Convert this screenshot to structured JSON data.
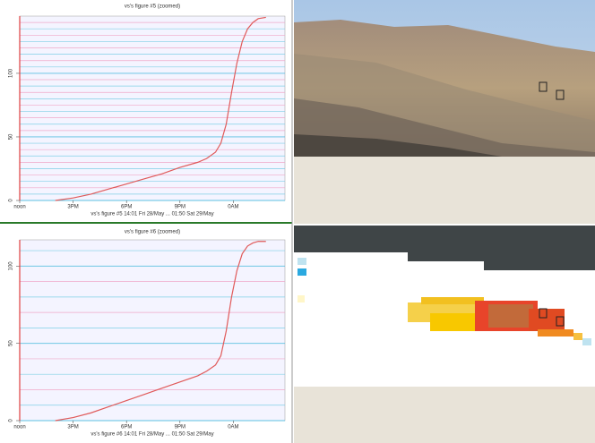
{
  "chart_data": [
    {
      "type": "line",
      "title": "vs's figure #5 (zoomed)",
      "x_label": "vs's figure #5 14:01 Fri 28/May ... 01:50 Sat 29/May",
      "x": [
        14,
        15,
        16,
        17,
        18,
        19,
        20,
        21,
        22,
        22.5,
        23,
        23.3,
        23.6,
        23.9,
        24.2,
        24.5,
        24.8,
        25.1,
        25.4,
        25.83
      ],
      "values": [
        0,
        2,
        5,
        9,
        13,
        17,
        21,
        26,
        30,
        33,
        38,
        45,
        60,
        85,
        108,
        125,
        135,
        140,
        143,
        144
      ],
      "color": "#e05a5a",
      "xlim": [
        12,
        26.9
      ],
      "ylim": [
        0,
        145
      ],
      "xticks": [
        {
          "value": 12,
          "label": "noon"
        },
        {
          "value": 15,
          "label": "3PM"
        },
        {
          "value": 18,
          "label": "6PM"
        },
        {
          "value": 21,
          "label": "9PM"
        },
        {
          "value": 24,
          "label": "0AM"
        }
      ],
      "yticks": [
        0,
        50,
        100
      ],
      "yminorticks": [
        5,
        10,
        15,
        20,
        25,
        30,
        35,
        40,
        45,
        55,
        60,
        65,
        70,
        75,
        80,
        85,
        90,
        95,
        105,
        110,
        115,
        120,
        125,
        130,
        135,
        140
      ],
      "grid": true
    },
    {
      "type": "line",
      "title": "vs's figure #6 (zoomed)",
      "x_label": "vs's figure #6 14:01 Fri 28/May ... 01:50 Sat 29/May",
      "x": [
        14,
        15,
        16,
        17,
        18,
        19,
        20,
        21,
        22,
        22.5,
        23,
        23.3,
        23.6,
        23.9,
        24.2,
        24.5,
        24.8,
        25.1,
        25.4,
        25.83
      ],
      "values": [
        0,
        2,
        5,
        9,
        13,
        17,
        21,
        25,
        29,
        32,
        36,
        42,
        58,
        80,
        97,
        108,
        113,
        115,
        116,
        116
      ],
      "color": "#e05a5a",
      "xlim": [
        12,
        26.9
      ],
      "ylim": [
        0,
        117
      ],
      "xticks": [
        {
          "value": 12,
          "label": "noon"
        },
        {
          "value": 15,
          "label": "3PM"
        },
        {
          "value": 18,
          "label": "6PM"
        },
        {
          "value": 21,
          "label": "9PM"
        },
        {
          "value": 24,
          "label": "0AM"
        }
      ],
      "yticks": [
        0,
        50,
        100
      ],
      "yminorticks": [
        10,
        20,
        30,
        40,
        60,
        70,
        80,
        90,
        110
      ],
      "grid": true
    }
  ]
}
